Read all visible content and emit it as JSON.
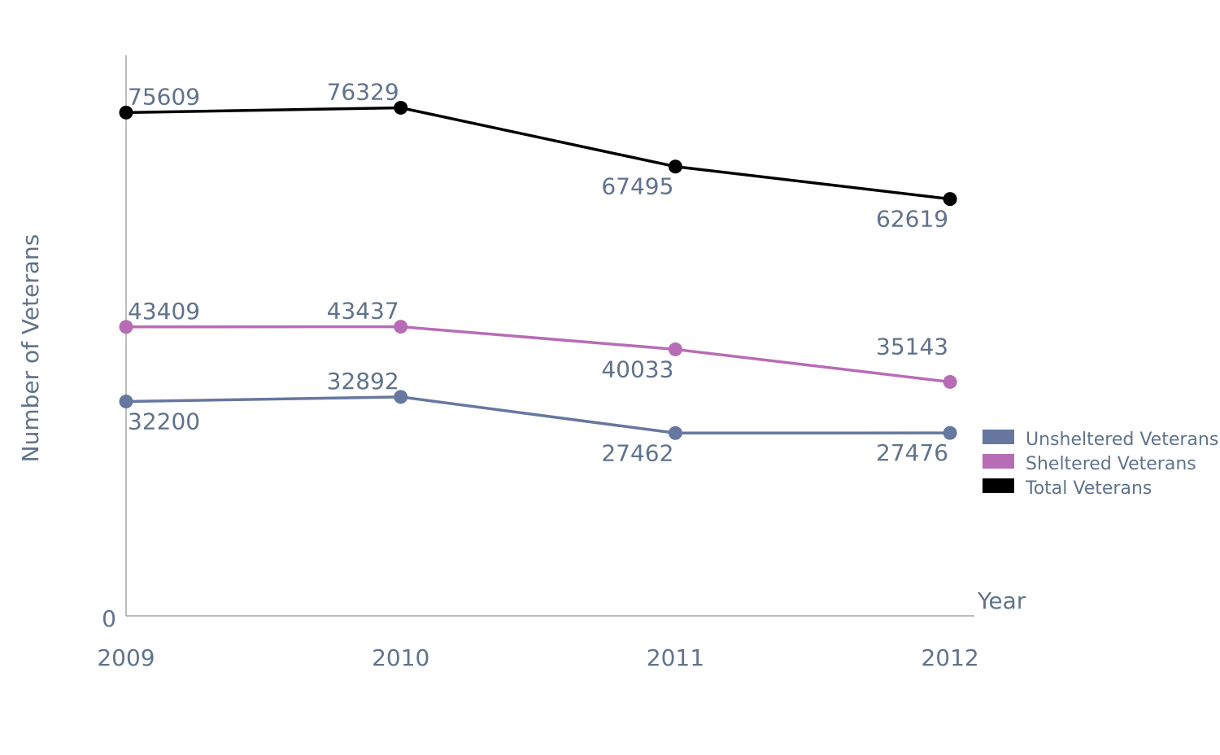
{
  "chart_data": {
    "type": "line",
    "xlabel": "Year",
    "ylabel": "Number of Veterans",
    "y_tick_labels": [
      "0"
    ],
    "categories": [
      "2009",
      "2010",
      "2011",
      "2012"
    ],
    "ylim": [
      0,
      80000
    ],
    "grid": false,
    "legend_position": "right",
    "series": [
      {
        "name": "Unsheltered Veterans",
        "color": "#6677a0",
        "values": [
          32200,
          32892,
          27462,
          27476
        ]
      },
      {
        "name": "Sheltered Veterans",
        "color": "#b86cb5",
        "values": [
          43409,
          43437,
          40033,
          35143
        ]
      },
      {
        "name": "Total Veterans",
        "color": "#000000",
        "values": [
          75609,
          76329,
          67495,
          62619
        ]
      }
    ]
  }
}
